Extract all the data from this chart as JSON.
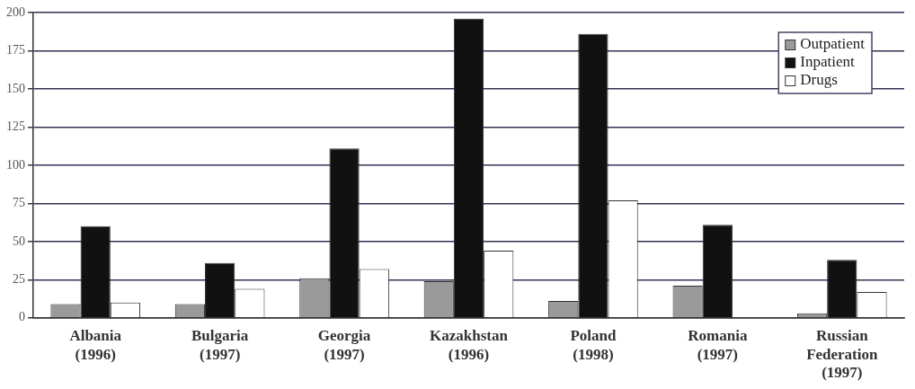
{
  "chart_data": {
    "type": "bar",
    "categories": [
      "Albania\n(1996)",
      "Bulgaria\n(1997)",
      "Georgia\n(1997)",
      "Kazakhstan\n(1996)",
      "Poland\n(1998)",
      "Romania\n(1997)",
      "Russian\nFederation\n(1997)"
    ],
    "series": [
      {
        "name": "Outpatient",
        "color": "#9a9a9a",
        "values": [
          9,
          9,
          26,
          24,
          11,
          21,
          3
        ]
      },
      {
        "name": "Inpatient",
        "color": "#111111",
        "values": [
          60,
          36,
          111,
          196,
          186,
          61,
          38
        ]
      },
      {
        "name": "Drugs",
        "color": "#ffffff",
        "values": [
          10,
          19,
          32,
          44,
          77,
          null,
          17
        ]
      }
    ],
    "ylim": [
      0,
      200
    ],
    "yticks": [
      0,
      25,
      50,
      75,
      100,
      125,
      150,
      175,
      200
    ],
    "grid": "y",
    "legend": "top right"
  }
}
